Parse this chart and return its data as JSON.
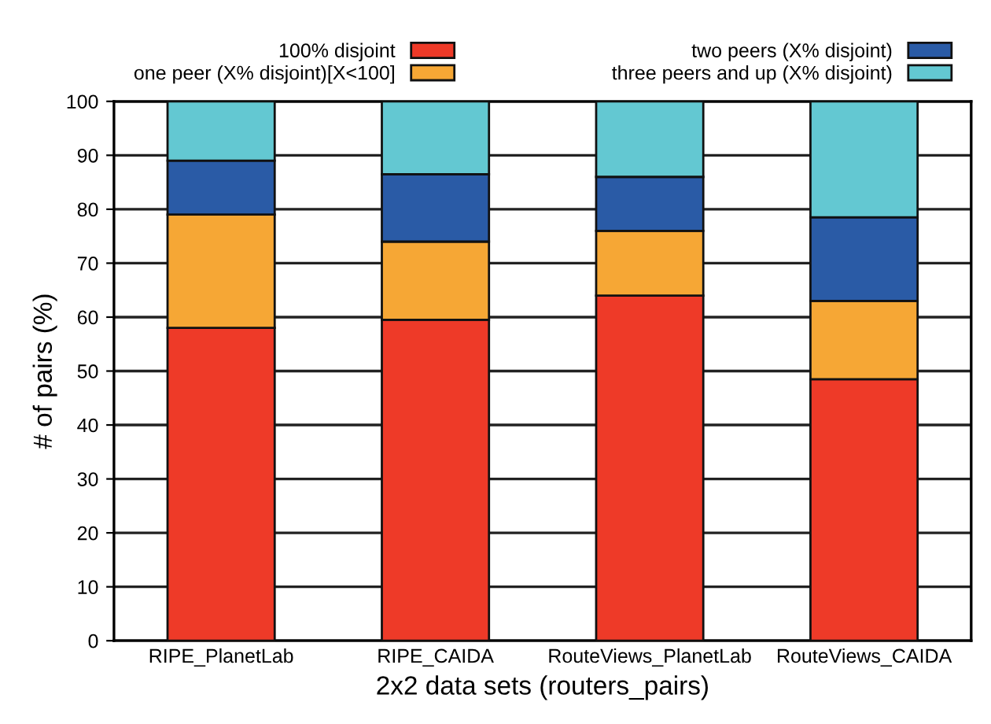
{
  "chart_data": {
    "type": "bar",
    "stacked": true,
    "xlabel": "2x2 data sets (routers_pairs)",
    "ylabel": "# of pairs (%)",
    "categories": [
      "RIPE_PlanetLab",
      "RIPE_CAIDA",
      "RouteViews_PlanetLab",
      "RouteViews_CAIDA"
    ],
    "series": [
      {
        "name": "100% disjoint",
        "color": "#ee3a28",
        "values": [
          58,
          59.5,
          64,
          48.5
        ]
      },
      {
        "name": "one peer (X% disjoint)[X<100]",
        "color": "#f6a735",
        "values": [
          21,
          14.5,
          12,
          14.5
        ]
      },
      {
        "name": "two peers (X% disjoint)",
        "color": "#2a5ba6",
        "values": [
          10,
          12.5,
          10,
          15.5
        ]
      },
      {
        "name": "three peers and up (X% disjoint)",
        "color": "#63c8d2",
        "values": [
          11,
          13.5,
          14,
          21.5
        ]
      }
    ],
    "ylim": [
      0,
      100
    ],
    "yticks": [
      0,
      10,
      20,
      30,
      40,
      50,
      60,
      70,
      80,
      90,
      100
    ],
    "grid": "y",
    "legend": "top"
  }
}
